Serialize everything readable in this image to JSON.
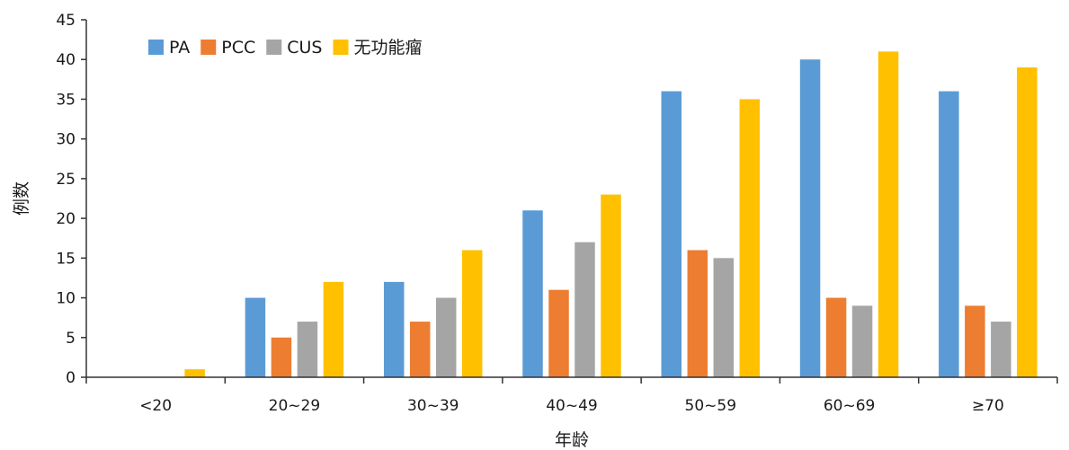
{
  "chart_data": {
    "type": "bar",
    "categories": [
      "<20",
      "20~29",
      "30~39",
      "40~49",
      "50~59",
      "60~69",
      "≥70"
    ],
    "series": [
      {
        "name": "PA",
        "color": "#5B9BD5",
        "values": [
          0,
          10,
          12,
          21,
          36,
          40,
          36
        ]
      },
      {
        "name": "PCC",
        "color": "#ED7D31",
        "values": [
          0,
          5,
          7,
          11,
          16,
          10,
          9
        ]
      },
      {
        "name": "CUS",
        "color": "#A5A5A5",
        "values": [
          0,
          7,
          10,
          17,
          15,
          9,
          7
        ]
      },
      {
        "name": "无功能瘤",
        "color": "#FFC000",
        "values": [
          1,
          12,
          16,
          23,
          35,
          41,
          39
        ]
      }
    ],
    "xlabel": "年龄",
    "ylabel": "例数",
    "ylim": [
      0,
      45
    ],
    "yticks": [
      0,
      5,
      10,
      15,
      20,
      25,
      30,
      35,
      40,
      45
    ],
    "grid": false,
    "legend_position": "top-left"
  }
}
